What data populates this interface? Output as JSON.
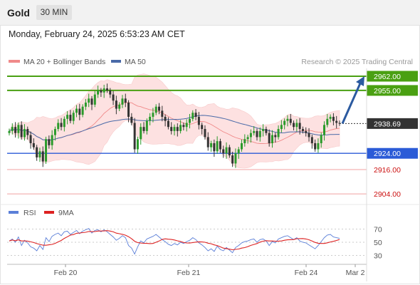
{
  "header": {
    "symbol": "Gold",
    "timeframe": "30 MIN",
    "datetime": "Monday, February 24, 2025 6:53:23 AM CET"
  },
  "legend": {
    "ma20_label": "MA 20 + Bollinger Bands",
    "ma50_label": "MA 50",
    "credit": "Research © 2025 Trading Central"
  },
  "rsi_legend": {
    "rsi_label": "RSI",
    "ma_label": "9MA"
  },
  "colors": {
    "up_candle": "#2a9a2a",
    "down_candle": "#333333",
    "bollinger_fill": "#fde1e1",
    "ma20": "#f08a8a",
    "ma50": "#4a6aa8",
    "resistance": "#4aa012",
    "support": "#2b5bd7",
    "target_lines": "#f0a0a0",
    "target_text": "#cc1111",
    "arrow": "#2b5aa0",
    "price_tag": "#333333",
    "rsi": "#5b7fd8",
    "rsi_ma": "#dd2222"
  },
  "chart_data": [
    {
      "type": "candlestick",
      "title": "Gold 30 MIN",
      "yrange": [
        2898,
        2966
      ],
      "x_ticks": [
        "Feb 20",
        "Feb 21",
        "Feb 24",
        "Mar 2"
      ],
      "last_price": 2938.69,
      "levels": [
        {
          "value": 2962.0,
          "label": "2962.00",
          "kind": "resistance"
        },
        {
          "value": 2955.0,
          "label": "2955.00",
          "kind": "resistance"
        },
        {
          "value": 2924.0,
          "label": "2924.00",
          "kind": "support"
        },
        {
          "value": 2916.0,
          "label": "2916.00",
          "kind": "target"
        },
        {
          "value": 2904.0,
          "label": "2904.00",
          "kind": "target"
        }
      ],
      "forecast": {
        "from": 2938.69,
        "to": 2962.0,
        "direction": "up"
      },
      "close_series": [
        2935,
        2937,
        2934,
        2938,
        2932,
        2936,
        2933,
        2929,
        2927,
        2922,
        2925,
        2920,
        2931,
        2928,
        2933,
        2936,
        2939,
        2937,
        2941,
        2943,
        2940,
        2944,
        2946,
        2943,
        2947,
        2949,
        2951,
        2948,
        2953,
        2955,
        2954,
        2956,
        2955,
        2953,
        2950,
        2946,
        2948,
        2951,
        2949,
        2942,
        2939,
        2926,
        2931,
        2937,
        2935,
        2940,
        2942,
        2944,
        2947,
        2945,
        2942,
        2940,
        2937,
        2935,
        2937,
        2935,
        2938,
        2937,
        2939,
        2941,
        2944,
        2942,
        2938,
        2936,
        2932,
        2927,
        2929,
        2925,
        2930,
        2926,
        2924,
        2927,
        2923,
        2919,
        2924,
        2926,
        2929,
        2931,
        2932,
        2934,
        2935,
        2932,
        2935,
        2936,
        2934,
        2929,
        2933,
        2932,
        2936,
        2938,
        2940,
        2941,
        2939,
        2937,
        2939,
        2936,
        2935,
        2934,
        2932,
        2929,
        2926,
        2929,
        2933,
        2938,
        2941,
        2942,
        2940,
        2939,
        2938.69
      ]
    },
    {
      "type": "line",
      "title": "RSI",
      "yticks": [
        70,
        50,
        30
      ],
      "rsi_series": [
        52,
        55,
        50,
        58,
        45,
        53,
        49,
        43,
        41,
        37,
        45,
        39,
        57,
        51,
        59,
        62,
        64,
        60,
        66,
        67,
        62,
        65,
        68,
        63,
        67,
        69,
        71,
        64,
        68,
        69,
        66,
        69,
        66,
        62,
        58,
        53,
        56,
        60,
        57,
        45,
        41,
        32,
        43,
        52,
        49,
        55,
        57,
        59,
        62,
        58,
        54,
        51,
        47,
        45,
        48,
        46,
        50,
        48,
        51,
        53,
        57,
        54,
        49,
        46,
        42,
        37,
        40,
        36,
        44,
        39,
        37,
        42,
        38,
        34,
        42,
        45,
        49,
        51,
        52,
        54,
        55,
        50,
        54,
        55,
        52,
        45,
        51,
        49,
        55,
        57,
        59,
        60,
        57,
        54,
        57,
        52,
        50,
        49,
        46,
        43,
        40,
        45,
        51,
        57,
        61,
        62,
        58,
        57,
        56
      ]
    }
  ]
}
